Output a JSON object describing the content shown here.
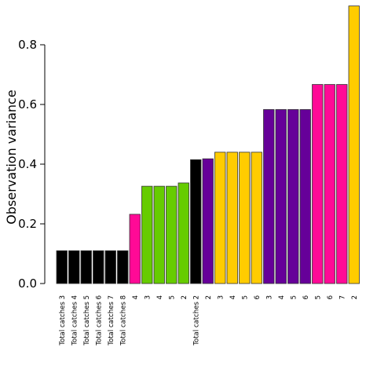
{
  "chart_data": {
    "type": "bar",
    "title": "",
    "xlabel": "",
    "ylabel": "Observation variance",
    "ylim": [
      0,
      0.93
    ],
    "yticks": [
      "0.0",
      "0.2",
      "0.4",
      "0.6",
      "0.8"
    ],
    "grid": false,
    "legend": "none",
    "bar_edge_color": "#333333",
    "categories": [
      "Total catches 3",
      "Total catches 4",
      "Total catches 5",
      "Total catches 6",
      "Total catches 7",
      "Total catches 8",
      "4",
      "3",
      "4",
      "5",
      "2",
      "Total catches 2",
      "2",
      "3",
      "4",
      "5",
      "6",
      "3",
      "4",
      "5",
      "6",
      "5",
      "6",
      "7",
      "2"
    ],
    "values": [
      0.11,
      0.11,
      0.11,
      0.11,
      0.11,
      0.11,
      0.232,
      0.326,
      0.326,
      0.326,
      0.337,
      0.415,
      0.418,
      0.44,
      0.44,
      0.44,
      0.44,
      0.583,
      0.583,
      0.583,
      0.583,
      0.667,
      0.667,
      0.667,
      0.93
    ],
    "colors": [
      "#000000",
      "#000000",
      "#000000",
      "#000000",
      "#000000",
      "#000000",
      "#FF0A96",
      "#66CC00",
      "#66CC00",
      "#66CC00",
      "#66CC00",
      "#000000",
      "#660099",
      "#FFCC00",
      "#FFCC00",
      "#FFCC00",
      "#FFCC00",
      "#660099",
      "#660099",
      "#660099",
      "#660099",
      "#FF0A96",
      "#FF0A96",
      "#FF0A96",
      "#FFCC00"
    ]
  }
}
